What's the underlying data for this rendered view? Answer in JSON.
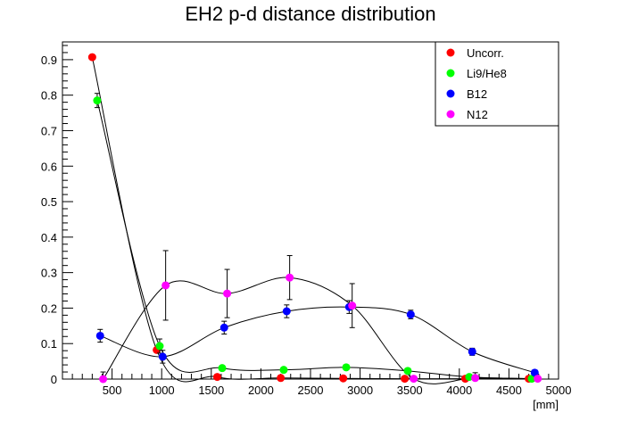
{
  "chart_data": {
    "type": "scatter",
    "title": "EH2 p-d distance distribution",
    "xlabel": "[mm]",
    "ylabel": "",
    "xlim": [
      0,
      5000
    ],
    "ylim": [
      0,
      0.95
    ],
    "xticks": [
      500,
      1000,
      1500,
      2000,
      2500,
      3000,
      3500,
      4000,
      4500,
      5000
    ],
    "yticks": [
      0,
      0.1,
      0.2,
      0.3,
      0.4,
      0.5,
      0.6,
      0.7,
      0.8,
      0.9
    ],
    "grid": false,
    "legend_position": "top-right",
    "series": [
      {
        "name": "Uncorr.",
        "color": "#ff0000",
        "x": [
          300,
          950,
          1560,
          2200,
          2830,
          3450,
          4060,
          4700
        ],
        "y": [
          0.907,
          0.082,
          0.006,
          0.003,
          0.002,
          0.001,
          0.001,
          0.001
        ],
        "err": [
          0.005,
          0.006,
          0.002,
          0.002,
          0.002,
          0.001,
          0.001,
          0.001
        ]
      },
      {
        "name": "Li9/He8",
        "color": "#00ff00",
        "x": [
          350,
          980,
          1610,
          2230,
          2860,
          3480,
          4100,
          4730
        ],
        "y": [
          0.785,
          0.093,
          0.031,
          0.026,
          0.033,
          0.023,
          0.006,
          0.001
        ],
        "err": [
          0.02,
          0.02,
          0.006,
          0.006,
          0.006,
          0.006,
          0.004,
          0.002
        ]
      },
      {
        "name": "B12",
        "color": "#0000ff",
        "x": [
          380,
          1010,
          1630,
          2260,
          2890,
          3510,
          4130,
          4760
        ],
        "y": [
          0.122,
          0.063,
          0.145,
          0.191,
          0.203,
          0.182,
          0.077,
          0.018
        ],
        "err": [
          0.018,
          0.018,
          0.018,
          0.018,
          0.018,
          0.012,
          0.01,
          0.007
        ]
      },
      {
        "name": "N12",
        "color": "#ff00ff",
        "x": [
          410,
          1040,
          1660,
          2290,
          2920,
          3540,
          4160,
          4790
        ],
        "y": [
          0.0,
          0.264,
          0.241,
          0.286,
          0.207,
          0.001,
          0.003,
          0.001
        ],
        "err": [
          0.02,
          0.098,
          0.068,
          0.062,
          0.062,
          0.004,
          0.015,
          0.004
        ]
      }
    ]
  }
}
